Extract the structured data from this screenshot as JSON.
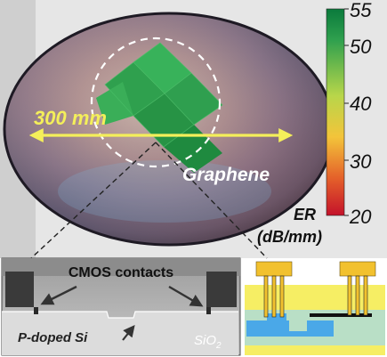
{
  "wafer_panel": {
    "diameter_label": "300 mm",
    "material_label": "Graphene"
  },
  "colorbar": {
    "title_line1": "ER",
    "title_line2": "(dB/mm)",
    "ticks": [
      "55",
      "50",
      "40",
      "30",
      "20"
    ],
    "colors": [
      "#0a7a3c",
      "#2fa04e",
      "#b8d64a",
      "#f3c43a",
      "#e4602a",
      "#c4122a"
    ]
  },
  "sem_panel": {
    "contacts_label": "CMOS contacts",
    "substrate_label": "P-doped Si",
    "oxide_label": "SiO",
    "oxide_subscript": "2"
  },
  "schematic_panel": {
    "colors": {
      "contact": "#f2c12e",
      "cladding": "#f6ee64",
      "oxide": "#b9dfc6",
      "waveguide": "#4aa8e8",
      "graphene": "#111111"
    }
  }
}
